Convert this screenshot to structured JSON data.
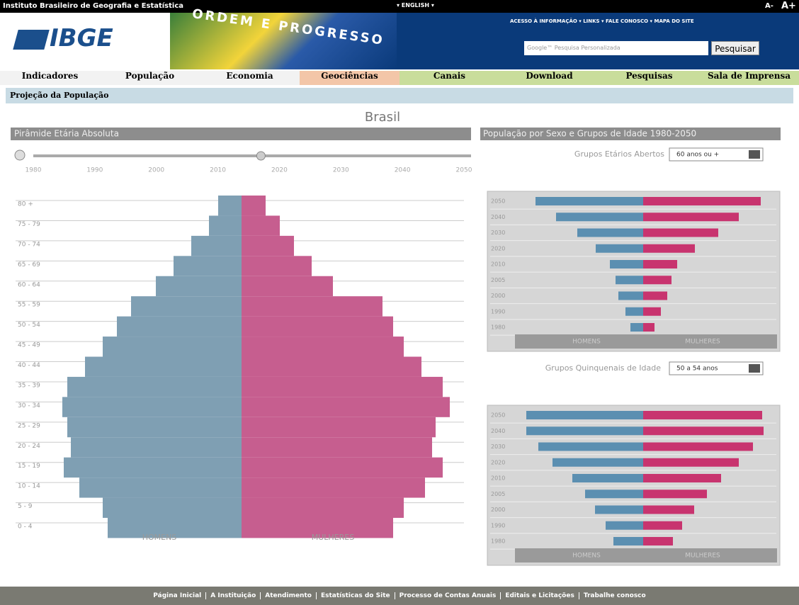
{
  "topbar": {
    "org": "Instituto Brasileiro de Geografia e Estatística",
    "lang": "▾ ENGLISH ▾",
    "font_small": "A-",
    "font_large": "A+"
  },
  "header": {
    "logo": "IBGE",
    "banner": "ORDEM E PROGRESSO",
    "links": "ACESSO À INFORMAÇÃO ▾ LINKS ▾ FALE CONOSCO ▾ MAPA DO SITE",
    "search_placeholder": "Google™ Pesquisa Personalizada",
    "search_button": "Pesquisar"
  },
  "nav": [
    "Indicadores",
    "População",
    "Economia",
    "Geociências",
    "Canais",
    "Download",
    "Pesquisas",
    "Sala de Imprensa"
  ],
  "breadcrumb": "Projeção da População",
  "page_title": "Brasil",
  "left_panel": {
    "title": "Pirâmide Etária Absoluta",
    "slider": {
      "value": 2017,
      "xlim": [
        1980,
        2050
      ],
      "xticks": [
        1980,
        1990,
        2000,
        2010,
        2020,
        2030,
        2040,
        2050
      ]
    },
    "pyramid": {
      "type": "bar",
      "orientation": "pyramid",
      "categories": [
        "0 - 4",
        "5 - 9",
        "10 - 14",
        "15 - 19",
        "20 - 24",
        "25 - 29",
        "30 - 34",
        "35 - 39",
        "40 - 44",
        "45 - 49",
        "50 - 54",
        "55 - 59",
        "60 - 64",
        "65 - 69",
        "70 - 74",
        "75 - 79",
        "80 +"
      ],
      "series": [
        {
          "name": "HOMENS",
          "color": "#7f9fb3",
          "values": [
            189,
            196,
            229,
            251,
            241,
            246,
            253,
            246,
            221,
            196,
            176,
            156,
            121,
            96,
            71,
            46,
            33
          ]
        },
        {
          "name": "MULHERES",
          "color": "#c65e8f",
          "values": [
            214,
            229,
            259,
            284,
            269,
            274,
            294,
            284,
            254,
            229,
            214,
            199,
            129,
            99,
            74,
            54,
            34
          ]
        }
      ]
    }
  },
  "right_panel": {
    "title": "População por Sexo e Grupos de Idade 1980-2050",
    "charts": [
      {
        "type": "bar",
        "orientation": "pyramid",
        "selector_label": "Grupos Etários Abertos",
        "selector_value": "60 anos ou +",
        "categories": [
          "2050",
          "2040",
          "2030",
          "2020",
          "2010",
          "2005",
          "2000",
          "1990",
          "1980"
        ],
        "series": [
          {
            "name": "HOMENS",
            "color": "#5b8fb1",
            "values": [
              152,
              123,
              93,
              67,
              47,
              39,
              35,
              25,
              18
            ]
          },
          {
            "name": "MULHERES",
            "color": "#c8346f",
            "values": [
              166,
              135,
              106,
              73,
              48,
              40,
              34,
              25,
              16
            ]
          }
        ]
      },
      {
        "type": "bar",
        "orientation": "pyramid",
        "selector_label": "Grupos Quinquenais de Idade",
        "selector_value": "50 a 54 anos",
        "categories": [
          "2050",
          "2040",
          "2030",
          "2020",
          "2010",
          "2005",
          "2000",
          "1990",
          "1980"
        ],
        "series": [
          {
            "name": "HOMENS",
            "color": "#5b8fb1",
            "values": [
              165,
              165,
              148,
              128,
              100,
              82,
              68,
              53,
              42
            ]
          },
          {
            "name": "MULHERES",
            "color": "#c8346f",
            "values": [
              168,
              170,
              155,
              135,
              110,
              90,
              72,
              55,
              42
            ]
          }
        ]
      }
    ]
  },
  "footer": [
    "Página Inicial",
    "A Instituição",
    "Atendimento",
    "Estatísticas do Site",
    "Processo de Contas Anuais",
    "Editais e Licitações",
    "Trabalhe conosco"
  ]
}
